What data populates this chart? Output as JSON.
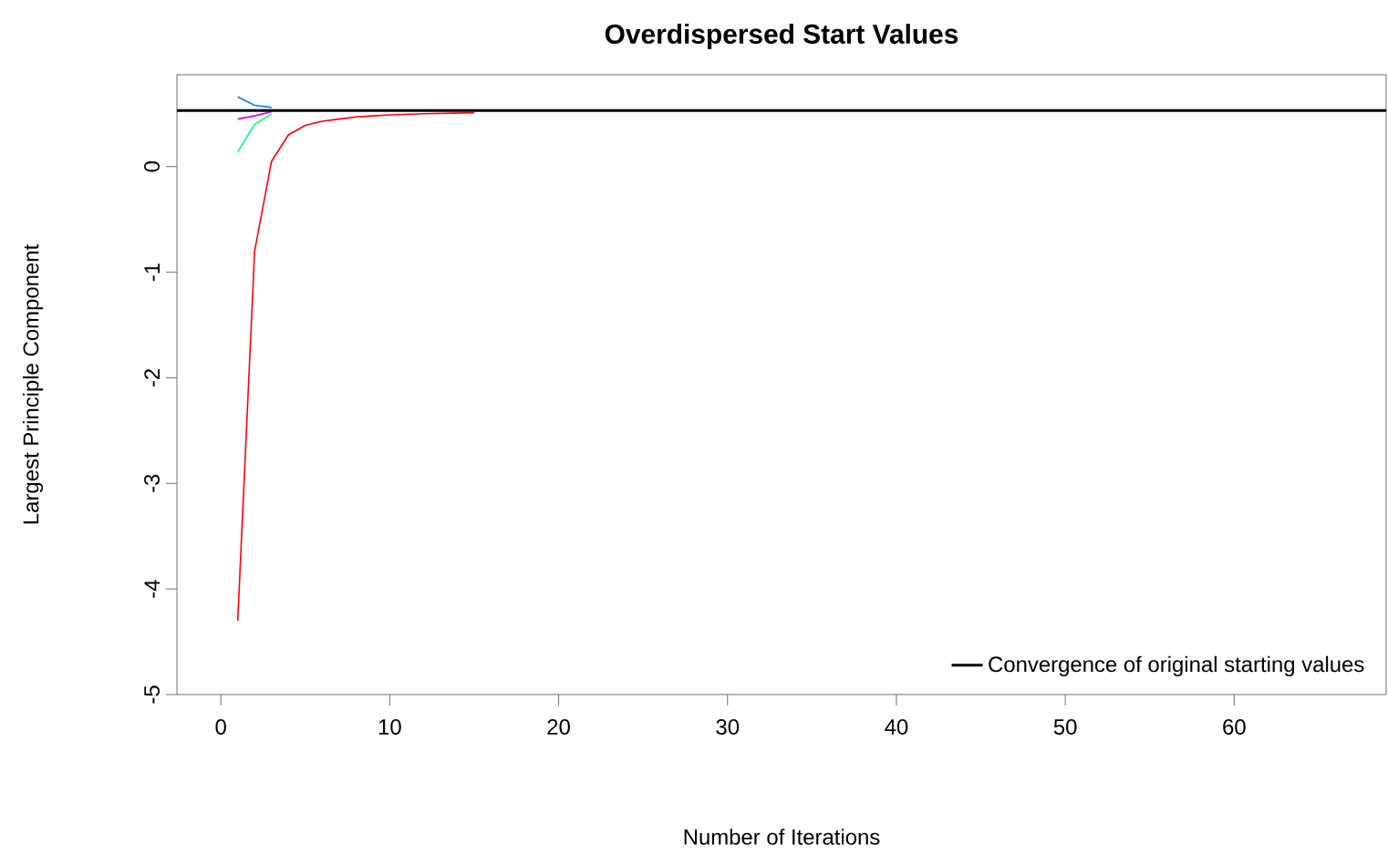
{
  "chart_data": {
    "type": "line",
    "title": "Overdispersed Start Values",
    "xlabel": "Number of Iterations",
    "ylabel": "Largest Principle Component",
    "xlim": [
      -2.6,
      69
    ],
    "ylim": [
      -5,
      0.87
    ],
    "xticks": [
      0,
      10,
      20,
      30,
      40,
      50,
      60
    ],
    "yticks": [
      -5,
      -4,
      -3,
      -2,
      -1,
      0
    ],
    "legend": "bottom right",
    "grid": false,
    "ref_lines": [
      {
        "axis": "y",
        "value": 0.53,
        "label": "Convergence of original starting values",
        "color": "#000000"
      }
    ],
    "series": [
      {
        "color": "#ff0000",
        "x": [
          1,
          2,
          3,
          4,
          5,
          6,
          7,
          8,
          9,
          10,
          12,
          15
        ],
        "values": [
          -4.3,
          -0.8,
          0.05,
          0.3,
          0.39,
          0.43,
          0.45,
          0.47,
          0.48,
          0.49,
          0.5,
          0.51
        ]
      },
      {
        "color": "#00ff80",
        "x": [
          1,
          2,
          3
        ],
        "values": [
          0.14,
          0.4,
          0.5
        ]
      },
      {
        "color": "#0080ff",
        "x": [
          1,
          2,
          3
        ],
        "values": [
          0.66,
          0.58,
          0.56
        ]
      },
      {
        "color": "#cc00ff",
        "x": [
          1,
          2,
          3
        ],
        "values": [
          0.45,
          0.48,
          0.52
        ]
      }
    ]
  }
}
